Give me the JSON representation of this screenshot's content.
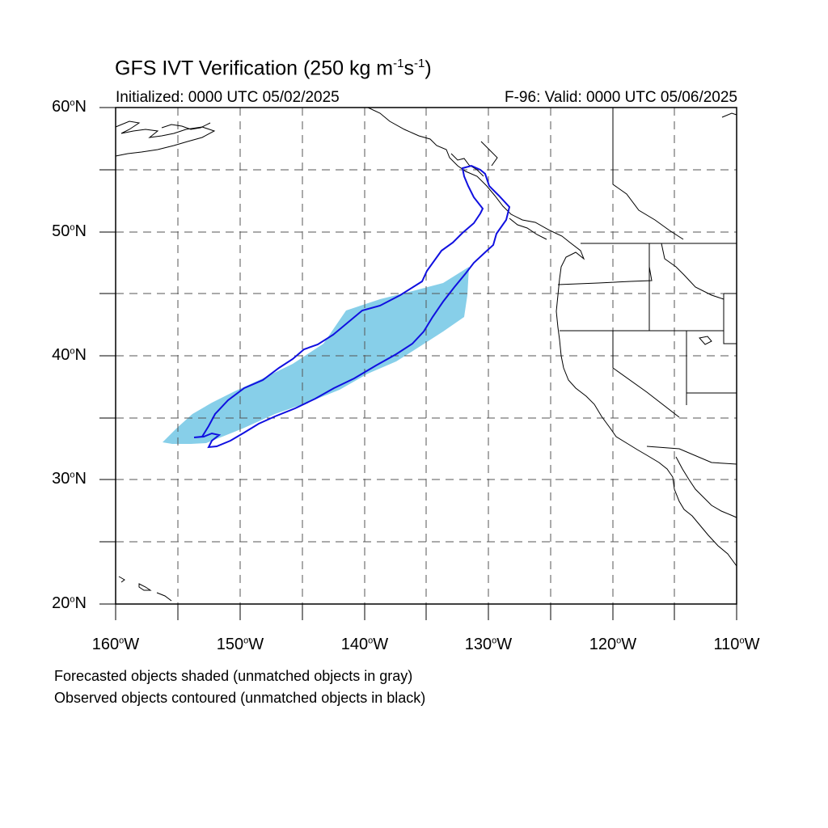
{
  "map": {
    "title_main": "GFS IVT Verification (250 kg m",
    "title_exp1": "-1",
    "title_mid": "s",
    "title_exp2": "-1",
    "title_end": ")",
    "initialized": "Initialized: 0000 UTC 05/02/2025",
    "valid": "F-96: Valid: 0000 UTC 05/06/2025",
    "lat_labels": [
      "60",
      "50",
      "40",
      "30",
      "20"
    ],
    "lat_suffix": "N",
    "lon_labels": [
      "160",
      "150",
      "140",
      "130",
      "120",
      "110"
    ],
    "lon_suffix": "W",
    "note_forecast": "Forecasted objects shaded (unmatched objects in gray)",
    "note_observed": "Observed objects contoured (unmatched objects in black)",
    "extent": {
      "lon_min": -160,
      "lon_max": -110,
      "lat_min": 20,
      "lat_max": 60
    },
    "colors": {
      "forecast_fill": "#87cfe9",
      "observed_contour": "#1010e0",
      "grid": "#555555",
      "coast": "#000000"
    }
  }
}
